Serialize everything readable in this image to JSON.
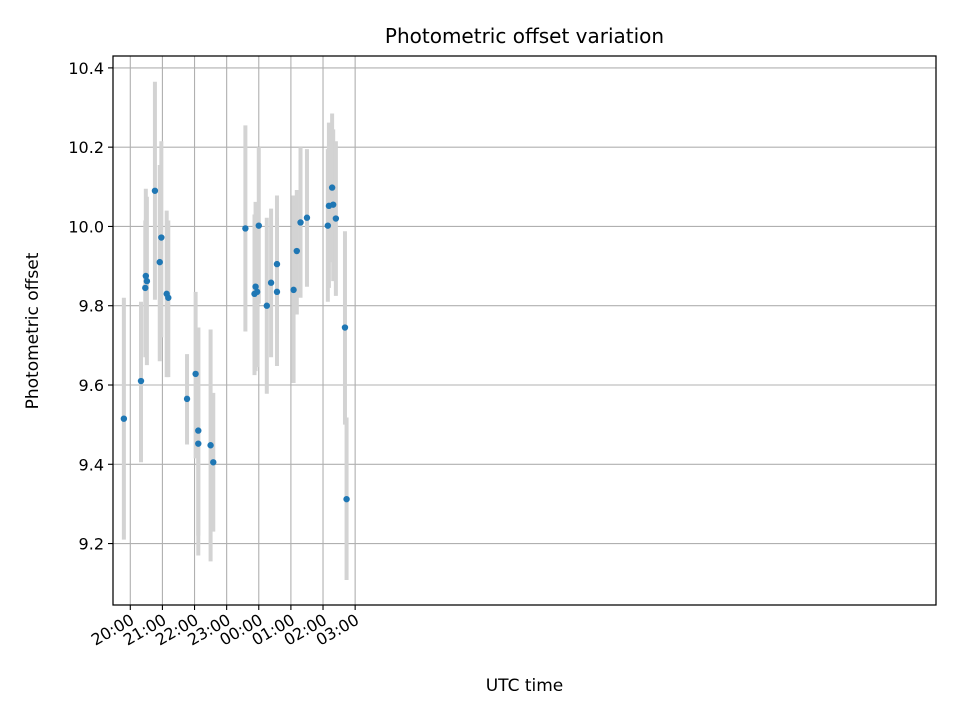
{
  "chart_data": {
    "type": "scatter",
    "title": "Photometric offset variation",
    "xlabel": "UTC time",
    "ylabel": "Photometric offset",
    "x_unit": "UTC time, minutes after 19:00 (values past 24:00 are on the following day)",
    "xlim": [
      27.7,
      1565
    ],
    "ylim": [
      9.045,
      10.43
    ],
    "x_ticks": [
      {
        "value": 60,
        "label": "20:00"
      },
      {
        "value": 120,
        "label": "21:00"
      },
      {
        "value": 180,
        "label": "22:00"
      },
      {
        "value": 240,
        "label": "23:00"
      },
      {
        "value": 300,
        "label": "00:00"
      },
      {
        "value": 360,
        "label": "01:00"
      },
      {
        "value": 420,
        "label": "02:00"
      },
      {
        "value": 480,
        "label": "03:00"
      }
    ],
    "y_ticks": [
      {
        "value": 9.2,
        "label": "9.2"
      },
      {
        "value": 9.4,
        "label": "9.4"
      },
      {
        "value": 9.6,
        "label": "9.6"
      },
      {
        "value": 9.8,
        "label": "9.8"
      },
      {
        "value": 10.0,
        "label": "10.0"
      },
      {
        "value": 10.2,
        "label": "10.2"
      },
      {
        "value": 10.4,
        "label": "10.4"
      }
    ],
    "grid": true,
    "marker_color": "#1f77b4",
    "errorbar_color": "#d3d3d3",
    "points": [
      {
        "time": "19:48",
        "y": 9.515,
        "ylo": 9.21,
        "yhi": 9.82
      },
      {
        "time": "20:20",
        "y": 9.61,
        "ylo": 9.405,
        "yhi": 9.81
      },
      {
        "time": "20:28",
        "y": 9.845,
        "ylo": 9.67,
        "yhi": 10.015
      },
      {
        "time": "20:29",
        "y": 9.875,
        "ylo": 9.68,
        "yhi": 10.095
      },
      {
        "time": "20:31",
        "y": 9.862,
        "ylo": 9.65,
        "yhi": 10.075
      },
      {
        "time": "20:46",
        "y": 10.09,
        "ylo": 9.815,
        "yhi": 10.365
      },
      {
        "time": "20:55",
        "y": 9.91,
        "ylo": 9.66,
        "yhi": 10.155
      },
      {
        "time": "20:58",
        "y": 9.972,
        "ylo": 9.72,
        "yhi": 10.215
      },
      {
        "time": "21:08",
        "y": 9.83,
        "ylo": 9.62,
        "yhi": 10.04
      },
      {
        "time": "21:11",
        "y": 9.82,
        "ylo": 9.62,
        "yhi": 10.015
      },
      {
        "time": "21:46",
        "y": 9.565,
        "ylo": 9.45,
        "yhi": 9.678
      },
      {
        "time": "22:02",
        "y": 9.628,
        "ylo": 9.415,
        "yhi": 9.835
      },
      {
        "time": "22:07",
        "y": 9.452,
        "ylo": 9.17,
        "yhi": 9.745
      },
      {
        "time": "22:07",
        "y": 9.485,
        "ylo": 9.22,
        "yhi": 9.745
      },
      {
        "time": "22:30",
        "y": 9.448,
        "ylo": 9.155,
        "yhi": 9.74
      },
      {
        "time": "22:35",
        "y": 9.405,
        "ylo": 9.23,
        "yhi": 9.58
      },
      {
        "time": "23:35",
        "y": 9.995,
        "ylo": 9.735,
        "yhi": 10.255
      },
      {
        "time": "23:52",
        "y": 9.83,
        "ylo": 9.625,
        "yhi": 10.03
      },
      {
        "time": "23:54",
        "y": 9.848,
        "ylo": 9.635,
        "yhi": 10.062
      },
      {
        "time": "23:57",
        "y": 9.835,
        "ylo": 9.645,
        "yhi": 10.025
      },
      {
        "time": "00:00",
        "y": 10.002,
        "ylo": 9.805,
        "yhi": 10.2
      },
      {
        "time": "00:15",
        "y": 9.8,
        "ylo": 9.578,
        "yhi": 10.022
      },
      {
        "time": "00:23",
        "y": 9.858,
        "ylo": 9.67,
        "yhi": 10.045
      },
      {
        "time": "00:34",
        "y": 9.905,
        "ylo": 9.73,
        "yhi": 10.078
      },
      {
        "time": "00:34",
        "y": 9.835,
        "ylo": 9.648,
        "yhi": 10.022
      },
      {
        "time": "01:05",
        "y": 9.84,
        "ylo": 9.605,
        "yhi": 10.078
      },
      {
        "time": "01:11",
        "y": 9.938,
        "ylo": 9.778,
        "yhi": 10.092
      },
      {
        "time": "01:18",
        "y": 10.01,
        "ylo": 9.82,
        "yhi": 10.2
      },
      {
        "time": "01:30",
        "y": 10.022,
        "ylo": 9.848,
        "yhi": 10.195
      },
      {
        "time": "02:09",
        "y": 10.002,
        "ylo": 9.81,
        "yhi": 10.195
      },
      {
        "time": "02:11",
        "y": 10.052,
        "ylo": 9.845,
        "yhi": 10.262
      },
      {
        "time": "02:17",
        "y": 10.098,
        "ylo": 9.91,
        "yhi": 10.285
      },
      {
        "time": "02:19",
        "y": 10.055,
        "ylo": 9.862,
        "yhi": 10.245
      },
      {
        "time": "02:24",
        "y": 10.02,
        "ylo": 9.825,
        "yhi": 10.215
      },
      {
        "time": "02:41",
        "y": 9.745,
        "ylo": 9.5,
        "yhi": 9.988
      },
      {
        "time": "02:44",
        "y": 9.312,
        "ylo": 9.108,
        "yhi": 9.518
      }
    ]
  }
}
